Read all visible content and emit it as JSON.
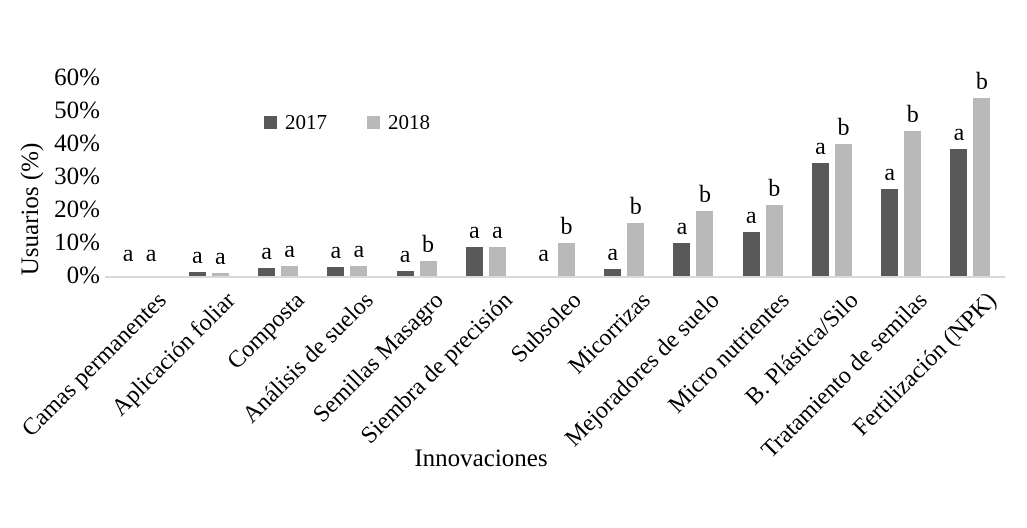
{
  "chart_data": {
    "type": "bar",
    "title": "",
    "xlabel": "Innovaciones",
    "ylabel": "Usuarios (%)",
    "ylim": [
      0,
      60
    ],
    "ytick_step": 10,
    "ytick_labels": [
      "0%",
      "10%",
      "20%",
      "30%",
      "40%",
      "50%",
      "60%"
    ],
    "grid": false,
    "legend_position": "inside-top-left",
    "categories": [
      "Camas permanentes",
      "Aplicación foliar",
      "Composta",
      "Análisis de suelos",
      "Semillas Masagro",
      "Siembra de precisión",
      "Subsoleo",
      "Micorrizas",
      "Mejoradores de suelo",
      "Micro nutrientes",
      "B. Plástica/Silo",
      "Tratamiento de semilas",
      "Fertilización (NPK)"
    ],
    "series": [
      {
        "name": "2017",
        "color": "#595959",
        "values": [
          0,
          1.2,
          2.3,
          2.7,
          1.5,
          8.7,
          0,
          2.0,
          9.9,
          13.2,
          34.1,
          26.4,
          38.4
        ]
      },
      {
        "name": "2018",
        "color": "#b9b9b9",
        "values": [
          0,
          1.0,
          3.1,
          3.0,
          4.6,
          8.7,
          9.9,
          16.2,
          19.6,
          21.4,
          40.0,
          44.0,
          54.0
        ]
      }
    ],
    "sig_letters": [
      [
        "a",
        "a"
      ],
      [
        "a",
        "a"
      ],
      [
        "a",
        "a"
      ],
      [
        "a",
        "a"
      ],
      [
        "a",
        "b"
      ],
      [
        "a",
        "a"
      ],
      [
        "a",
        "b"
      ],
      [
        "a",
        "b"
      ],
      [
        "a",
        "b"
      ],
      [
        "a",
        "b"
      ],
      [
        "a",
        "b"
      ],
      [
        "a",
        "b"
      ],
      [
        "a",
        "b"
      ]
    ]
  },
  "colors": {
    "axis_line": "#d9d9d9",
    "text": "#000000",
    "background": "#ffffff"
  }
}
